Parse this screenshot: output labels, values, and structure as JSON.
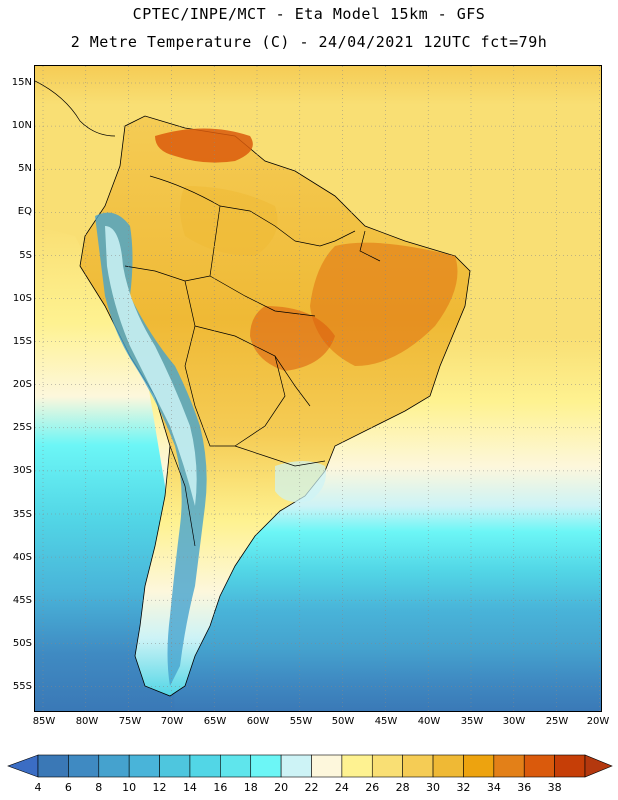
{
  "header": {
    "line1": "CPTEC/INPE/MCT -  Eta Model 15km - GFS",
    "line2": "2 Metre Temperature (C) - 24/04/2021 12UTC fct=79h"
  },
  "map": {
    "lat_labels": [
      "15N",
      "10N",
      "5N",
      "EQ",
      "5S",
      "10S",
      "15S",
      "20S",
      "25S",
      "30S",
      "35S",
      "40S",
      "45S",
      "50S",
      "55S"
    ],
    "lon_labels": [
      "85W",
      "80W",
      "75W",
      "70W",
      "65W",
      "60W",
      "55W",
      "50W",
      "45W",
      "40W",
      "35W",
      "30W",
      "25W",
      "20W"
    ]
  },
  "colorbar": {
    "labels": [
      "4",
      "6",
      "8",
      "10",
      "12",
      "14",
      "16",
      "18",
      "20",
      "22",
      "24",
      "26",
      "28",
      "30",
      "32",
      "34",
      "36",
      "38"
    ],
    "colors": [
      "#3a78b6",
      "#3f8ac2",
      "#45a2ce",
      "#49b4d9",
      "#4ec6de",
      "#52d6e6",
      "#5fe5ec",
      "#6cf6f6",
      "#cdf3f6",
      "#fdf7dc",
      "#fef291",
      "#f9df74",
      "#f5cc55",
      "#efb935",
      "#eda30f",
      "#e38018",
      "#da5a0c",
      "#c63e07"
    ],
    "under_color": "#3b6dc4",
    "over_color": "#b4380e"
  }
}
